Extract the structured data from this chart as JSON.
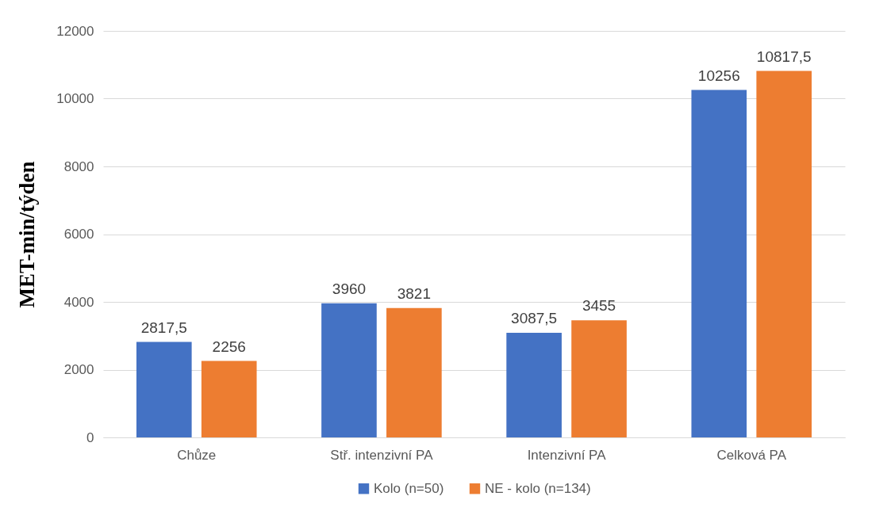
{
  "chart_data": {
    "type": "bar",
    "ylabel": "MET-min/týden",
    "categories": [
      "Chůze",
      "Stř. intenzivní PA",
      "Intenzivní PA",
      "Celková PA"
    ],
    "series": [
      {
        "name": "Kolo (n=50)",
        "color": "#4472c4",
        "values": [
          2817.5,
          3960,
          3087.5,
          10256
        ],
        "value_labels": [
          "2817,5",
          "3960",
          "3087,5",
          "10256"
        ]
      },
      {
        "name": "NE - kolo (n=134)",
        "color": "#ed7d31",
        "values": [
          2256,
          3821,
          3455,
          10817.5
        ],
        "value_labels": [
          "2256",
          "3821",
          "3455",
          "10817,5"
        ]
      }
    ],
    "ylim": [
      0,
      12000
    ],
    "yticks": [
      0,
      2000,
      4000,
      6000,
      8000,
      10000,
      12000
    ],
    "grid": "y",
    "legend": "bottom"
  }
}
